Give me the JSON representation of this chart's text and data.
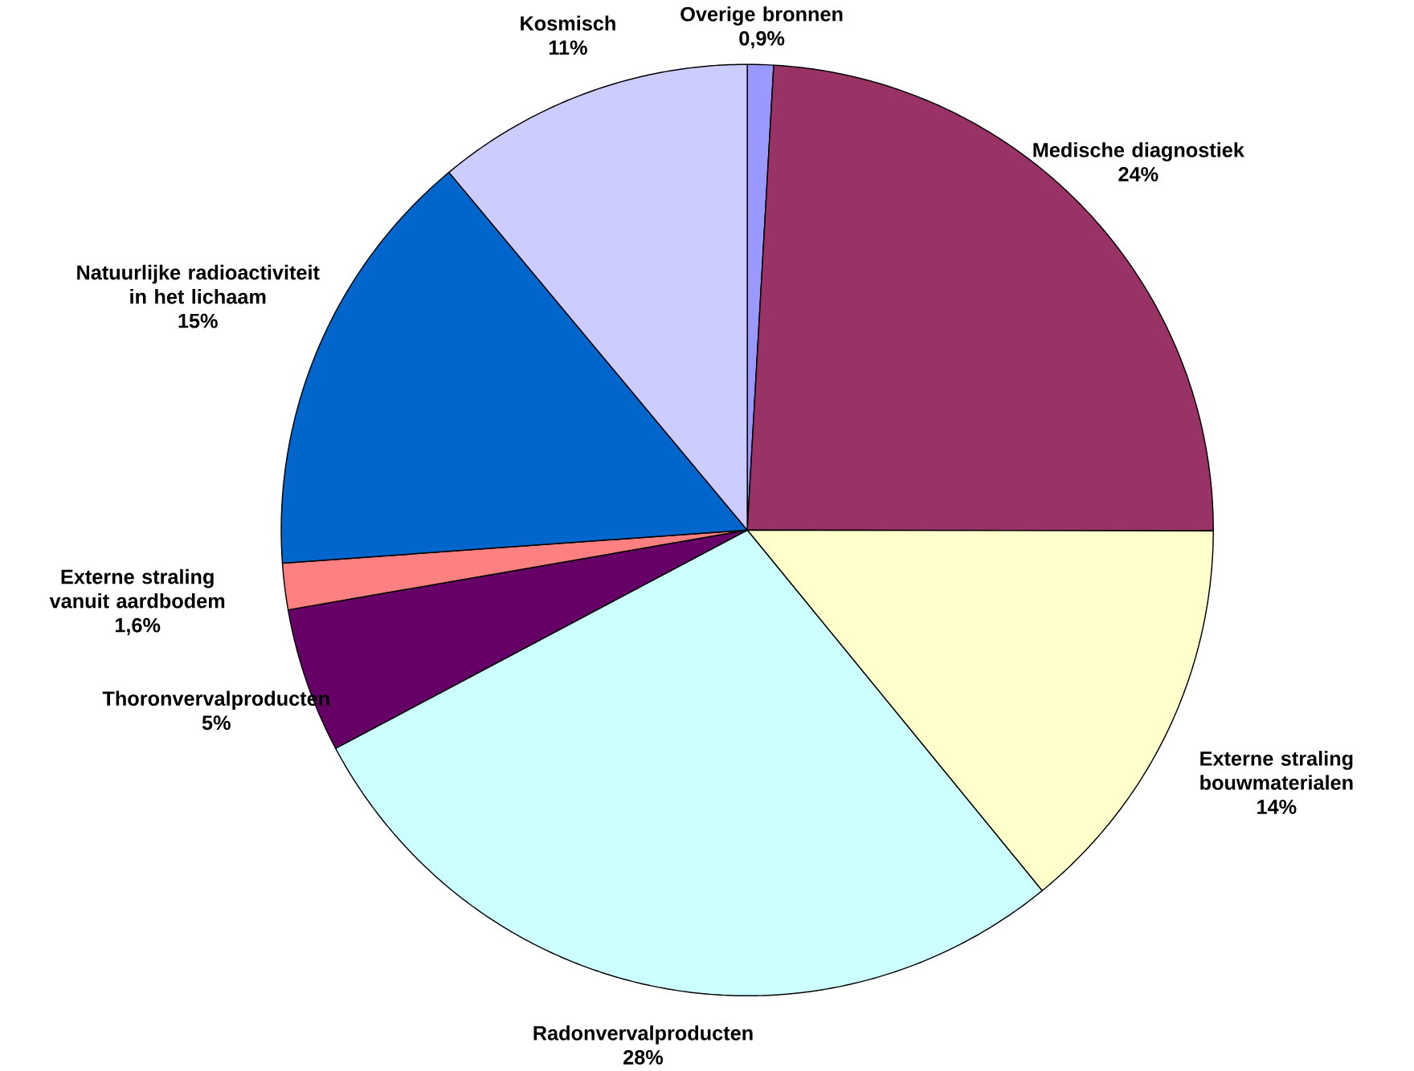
{
  "chart_data": {
    "type": "pie",
    "categories": [
      "Overige bronnen",
      "Medische diagnostiek",
      "Externe straling bouwmaterialen",
      "Radonvervalproducten",
      "Thoronvervalproducten",
      "Externe straling vanuit aardbodem",
      "Natuurlijke radioactiviteit in het lichaam",
      "Kosmisch"
    ],
    "values": [
      0.9,
      24,
      14,
      28,
      5,
      1.6,
      15,
      11
    ],
    "value_labels": [
      "0,9%",
      "24%",
      "14%",
      "28%",
      "5%",
      "1,6%",
      "15%",
      "11%"
    ],
    "colors": [
      "#9999ff",
      "#993366",
      "#ffffcc",
      "#ccffff",
      "#660066",
      "#ff8080",
      "#0066cc",
      "#ccccff"
    ]
  }
}
